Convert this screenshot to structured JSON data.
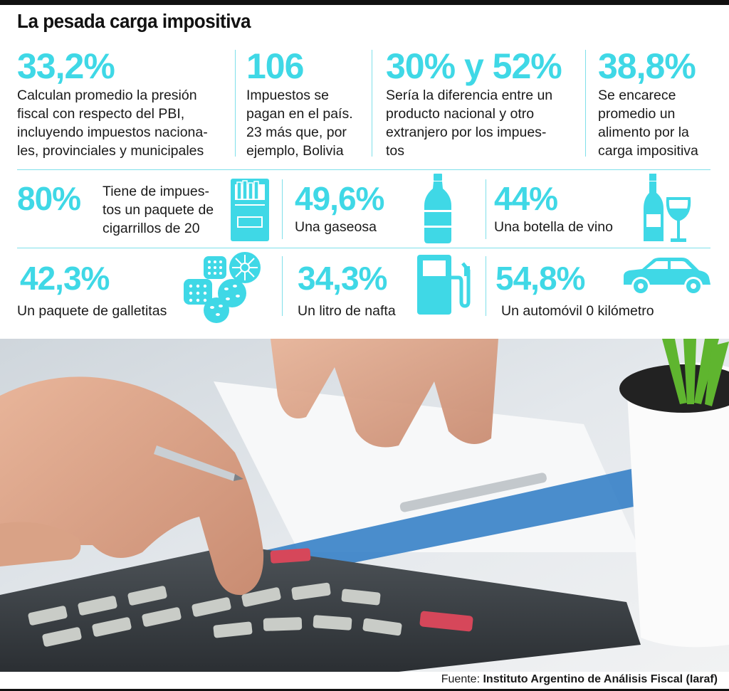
{
  "title": "La pesada carga impositiva",
  "top_stats": [
    {
      "value": "33,2%",
      "lines": [
        "Calculan promedio la presión",
        "fiscal con respecto del PBI,",
        "incluyendo impuestos naciona-",
        "les, provinciales y municipales"
      ]
    },
    {
      "value": "106",
      "lines": [
        "Impuestos se",
        "pagan en el país.",
        "23 más que, por",
        "ejemplo, Bolivia"
      ]
    },
    {
      "value": "30% y 52%",
      "lines": [
        "Sería la diferencia entre un",
        "producto nacional y otro",
        "extranjero por los impues-",
        "tos"
      ]
    },
    {
      "value": "38,8%",
      "lines": [
        "Se encarece",
        "promedio un",
        "alimento por la",
        "carga impositiva"
      ]
    }
  ],
  "products": [
    {
      "value": "80%",
      "lines": [
        "Tiene de impues-",
        "tos un paquete de",
        "cigarrillos de 20"
      ],
      "icon": "cigarette-pack-icon"
    },
    {
      "value": "49,6%",
      "lines": [
        "Una gaseosa"
      ],
      "icon": "soda-bottle-icon"
    },
    {
      "value": "44%",
      "lines": [
        "Una botella de vino"
      ],
      "icon": "wine-bottle-icon"
    },
    {
      "value": "42,3%",
      "lines": [
        "Un paquete de galletitas"
      ],
      "icon": "cookies-icon"
    },
    {
      "value": "34,3%",
      "lines": [
        "Un litro de nafta"
      ],
      "icon": "fuel-pump-icon"
    },
    {
      "value": "54,8%",
      "lines": [
        "Un automóvil 0 kilómetro"
      ],
      "icon": "car-icon"
    }
  ],
  "source": {
    "label": "Fuente:",
    "name": "Instituto Argentino de Análisis Fiscal (Iaraf)"
  },
  "colors": {
    "accent": "#3fd8e6",
    "divider": "#7fe0ea"
  }
}
